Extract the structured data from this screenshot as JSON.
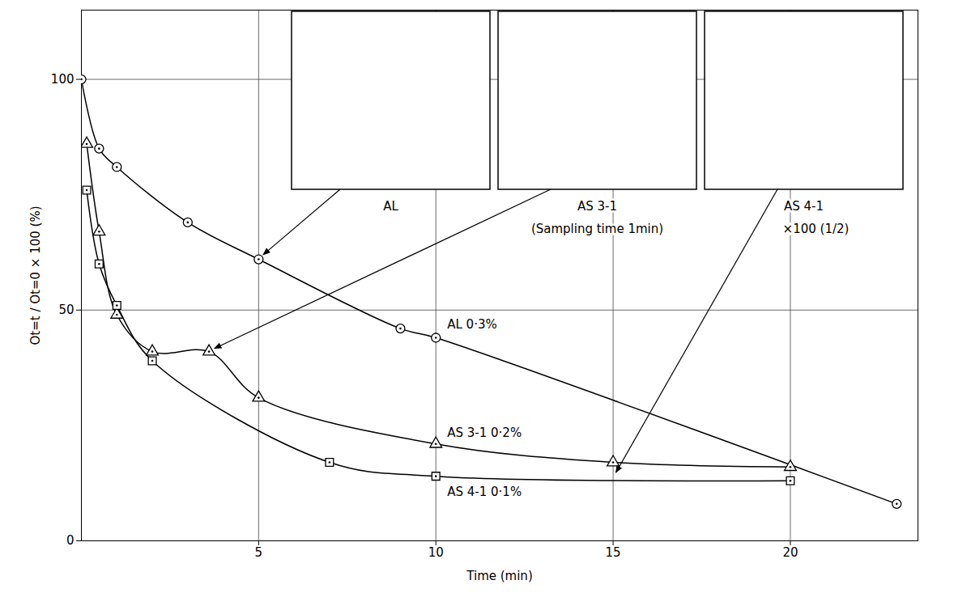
{
  "chart_data": {
    "type": "line",
    "x_label": "Time (min)",
    "y_label": "Ot=t / Ot=0 × 100 (%)",
    "xlim": [
      0,
      23.6
    ],
    "ylim": [
      0,
      115
    ],
    "xticks": [
      5,
      10,
      15,
      20
    ],
    "yticks": [
      0,
      50,
      100
    ],
    "grid": true,
    "series": [
      {
        "name": "AL 0·3%",
        "color": "#000000",
        "marker": "circle",
        "x": [
          0,
          0.5,
          1,
          3,
          5,
          9,
          10,
          23
        ],
        "values": [
          100,
          85,
          81,
          69,
          61,
          46,
          44,
          8
        ]
      },
      {
        "name": "AS 3-1 0·2%",
        "color": "#000000",
        "marker": "triangle",
        "x": [
          0.15,
          0.5,
          1,
          2,
          3.6,
          5,
          10,
          15,
          20
        ],
        "values": [
          86,
          67,
          49,
          41,
          41,
          31,
          21,
          17,
          16
        ]
      },
      {
        "name": "AS 4-1 0·1%",
        "color": "#000000",
        "marker": "square",
        "x": [
          0.15,
          0.5,
          1,
          2,
          7,
          10,
          20
        ],
        "values": [
          76,
          60,
          51,
          39,
          17,
          14,
          13
        ]
      }
    ],
    "annotations": [
      {
        "text": "AL",
        "points_to": "AL 0·3%"
      },
      {
        "text": "AS 3-1",
        "points_to": "AS 3-1 0·2%",
        "note": "(Sampling time 1min)"
      },
      {
        "text": "AS 4-1",
        "points_to": "AS 4-1 0·1%",
        "note": "×100 (1/2)"
      }
    ]
  }
}
